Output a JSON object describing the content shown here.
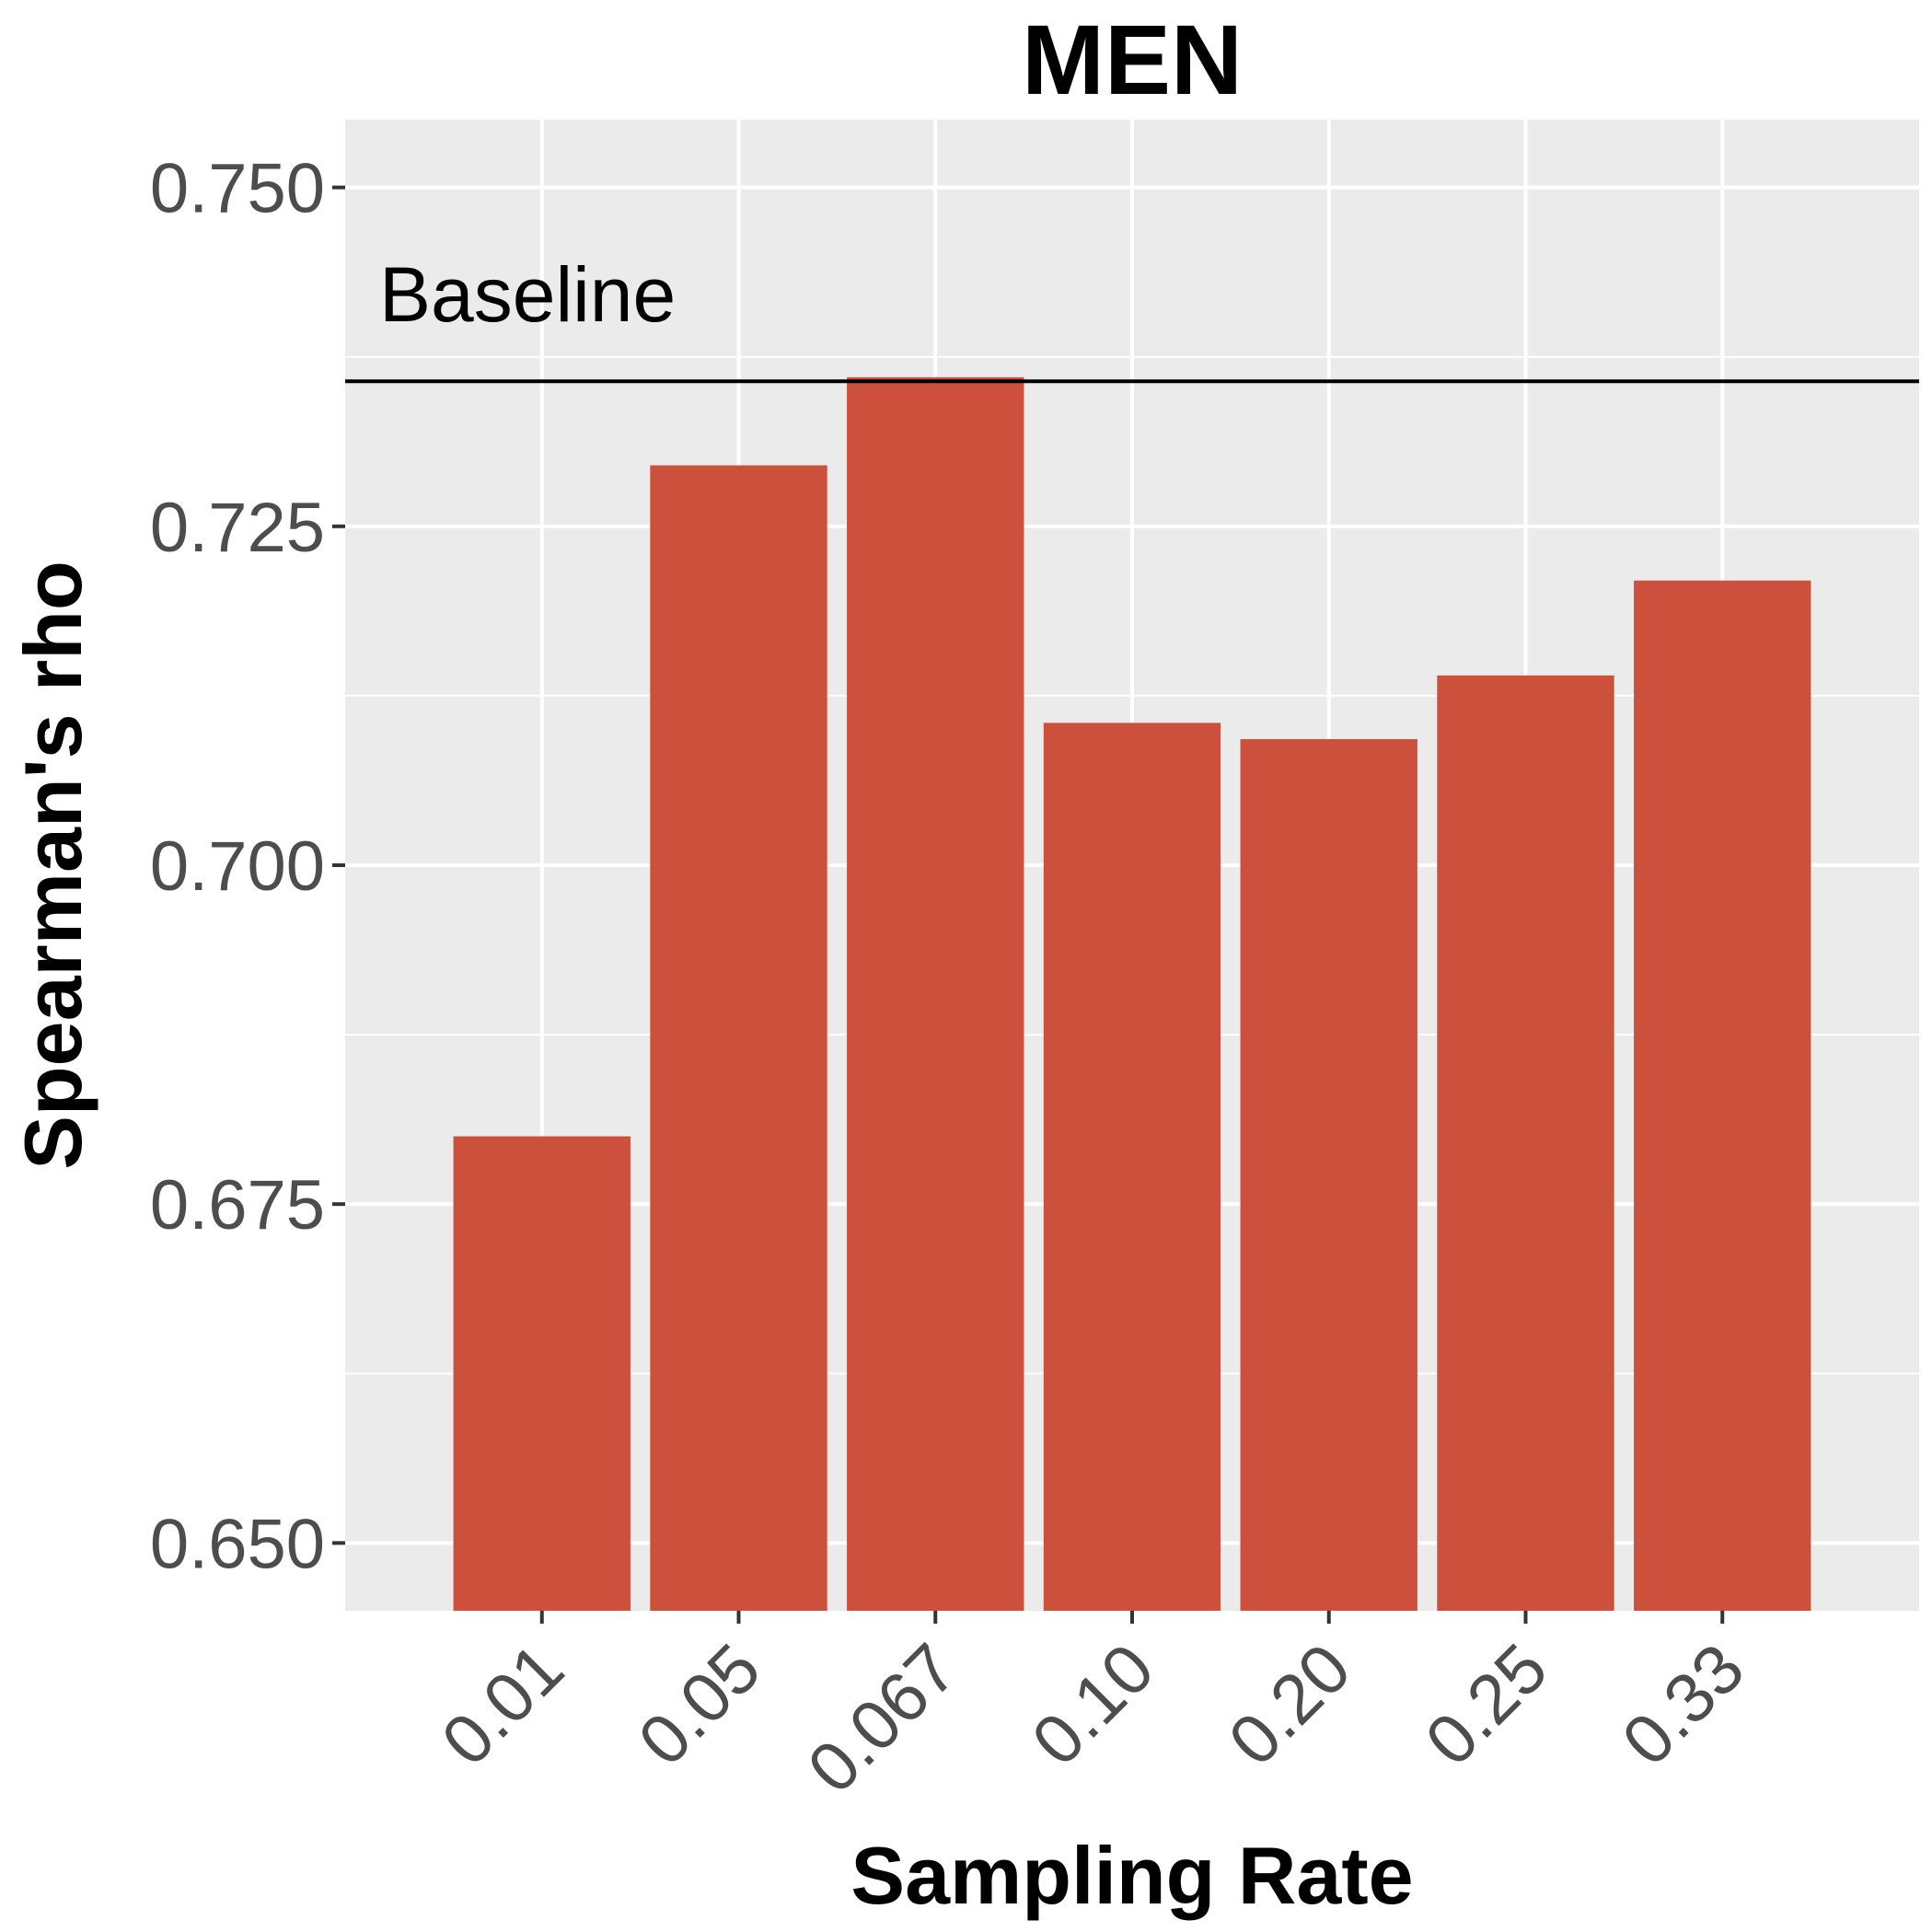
{
  "chart_data": {
    "type": "bar",
    "title": "MEN",
    "xlabel": "Sampling Rate",
    "ylabel": "Spearman's rho",
    "categories": [
      "0.01",
      "0.05",
      "0.067",
      "0.10",
      "0.20",
      "0.25",
      "0.33"
    ],
    "values": [
      0.68,
      0.7295,
      0.736,
      0.7105,
      0.7093,
      0.714,
      0.721
    ],
    "ylim": [
      0.645,
      0.755
    ],
    "yticks": [
      0.65,
      0.675,
      0.7,
      0.725,
      0.75
    ],
    "ytick_labels": [
      "0.650",
      "0.675",
      "0.700",
      "0.725",
      "0.750"
    ],
    "baseline": {
      "label": "Baseline",
      "value": 0.7357
    },
    "bar_color": "#cd503d",
    "panel_color": "#ebebeb",
    "grid": true,
    "legend": "none"
  }
}
